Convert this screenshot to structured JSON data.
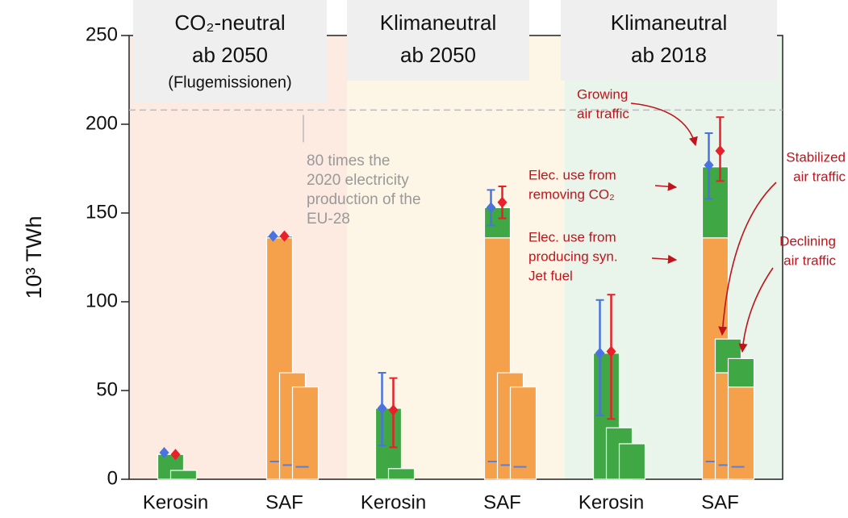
{
  "chart_data": {
    "type": "bar",
    "y_label": "10³ TWh",
    "categories": [
      "Kerosin",
      "SAF",
      "Kerosin",
      "SAF",
      "Kerosin",
      "SAF"
    ],
    "ylim": [
      0,
      250
    ],
    "yticks": [
      0,
      50,
      100,
      150,
      200,
      250
    ],
    "panels": [
      {
        "lines": [
          "CO₂-neutral",
          "ab 2050",
          "(Flugemissionen)"
        ],
        "color": "#fdebe2"
      },
      {
        "lines": [
          "Klimaneutral",
          "ab 2050"
        ],
        "color": "#fdf6e6"
      },
      {
        "lines": [
          "Klimaneutral",
          "ab 2018"
        ],
        "color": "#e9f4ea"
      }
    ],
    "scenarios": [
      {
        "segments": [
          {
            "color": "#f5a04a",
            "values": [
              0,
              136,
              0,
              136,
              0,
              136
            ]
          },
          {
            "color": "#3fa845",
            "values": [
              14,
              1,
              40,
              17,
              71,
              40
            ]
          }
        ],
        "dash": {
          "color": "#5b7fd6",
          "values": [
            null,
            10,
            null,
            10,
            null,
            10
          ]
        }
      },
      {
        "segments": [
          {
            "color": "#f5a04a",
            "values": [
              0,
              60,
              0,
              60,
              0,
              60
            ]
          },
          {
            "color": "#3fa845",
            "values": [
              5,
              0,
              6,
              0,
              29,
              19
            ]
          }
        ],
        "dash": {
          "color": "#5b7fd6",
          "values": [
            null,
            8,
            null,
            8,
            null,
            8
          ]
        }
      },
      {
        "segments": [
          {
            "color": "#f5a04a",
            "values": [
              0,
              52,
              0,
              52,
              0,
              52
            ]
          },
          {
            "color": "#3fa845",
            "values": [
              0,
              0,
              0,
              0,
              20,
              16
            ]
          }
        ],
        "dash": {
          "color": "#5b7fd6",
          "values": [
            null,
            7,
            null,
            7,
            null,
            7
          ]
        }
      }
    ],
    "errors": [
      {
        "color": "#4a73e0",
        "values": [
          15,
          137,
          40,
          153,
          71,
          177
        ],
        "low": [
          null,
          null,
          19,
          143,
          36,
          158
        ],
        "high": [
          null,
          null,
          60,
          163,
          101,
          195
        ]
      },
      {
        "color": "#e8202a",
        "values": [
          14,
          137,
          39,
          156,
          72,
          185
        ],
        "low": [
          null,
          null,
          18,
          147,
          34,
          168
        ],
        "high": [
          null,
          null,
          57,
          165,
          104,
          204
        ]
      }
    ],
    "reference_line": {
      "value": 208,
      "color": "#bbbbbb",
      "lines": [
        "80 times the",
        "2020 electricity",
        "production of the",
        "EU-28"
      ]
    },
    "annotations": [
      {
        "color": "#c0141c",
        "lines": [
          "Growing",
          "air traffic"
        ]
      },
      {
        "color": "#c0141c",
        "lines": [
          "Elec. use from",
          "removing CO₂"
        ]
      },
      {
        "color": "#c0141c",
        "lines": [
          "Elec. use from",
          "producing syn.",
          "Jet fuel"
        ]
      },
      {
        "color": "#c0141c",
        "lines": [
          "Stabilized",
          "air traffic"
        ]
      },
      {
        "color": "#c0141c",
        "lines": [
          "Declining",
          "air traffic"
        ]
      }
    ]
  }
}
